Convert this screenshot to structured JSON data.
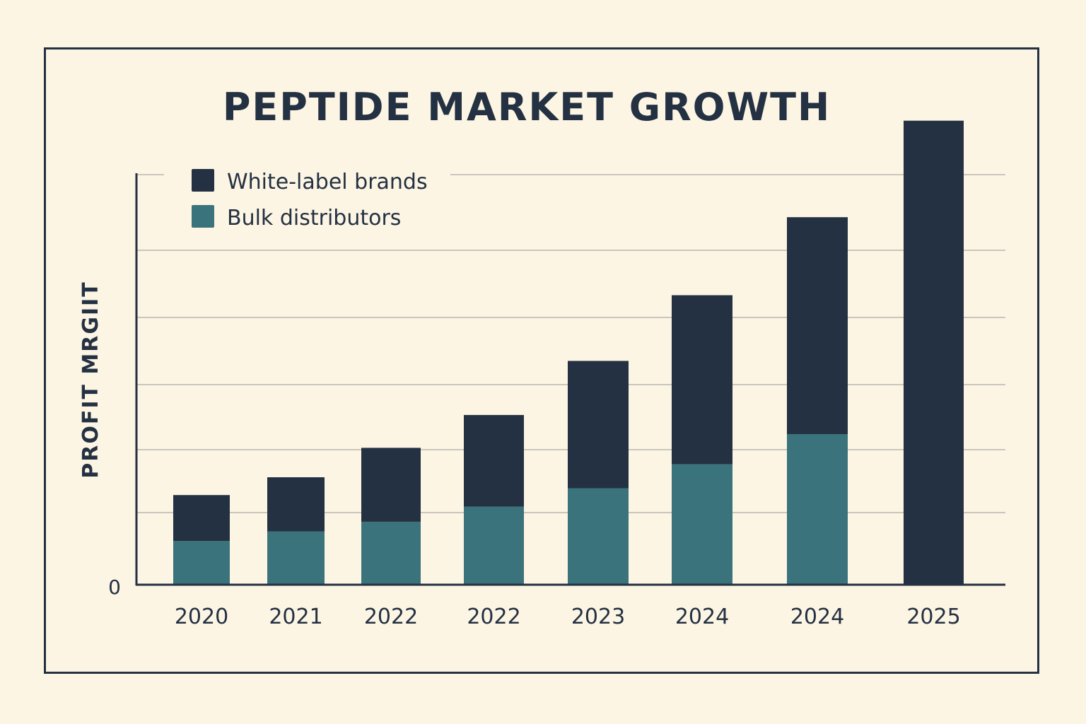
{
  "chart_data": {
    "type": "bar",
    "stacked": true,
    "title": "PEPTIDE MARKET GROWTH",
    "xlabel": "",
    "ylabel": "PROFIT MRGIIT",
    "categories": [
      "2020",
      "2021",
      "2022",
      "2022",
      "2023",
      "2024",
      "2024",
      "2025"
    ],
    "y_tick_labels": [
      "0"
    ],
    "ylim": [
      0,
      7
    ],
    "grid": true,
    "legend_position": "top-left",
    "series": [
      {
        "name": "Bulk distributors",
        "color": "#3a737b",
        "values": [
          0.64,
          0.78,
          0.92,
          1.14,
          1.41,
          1.76,
          2.2,
          0
        ]
      },
      {
        "name": "White-label brands",
        "color": "#243142",
        "values": [
          0.67,
          0.79,
          1.08,
          1.34,
          1.86,
          2.47,
          3.17,
          6.78
        ]
      }
    ]
  },
  "colors": {
    "background": "#fdf5e4",
    "text": "#243142",
    "grid": "#c9c6bd"
  }
}
